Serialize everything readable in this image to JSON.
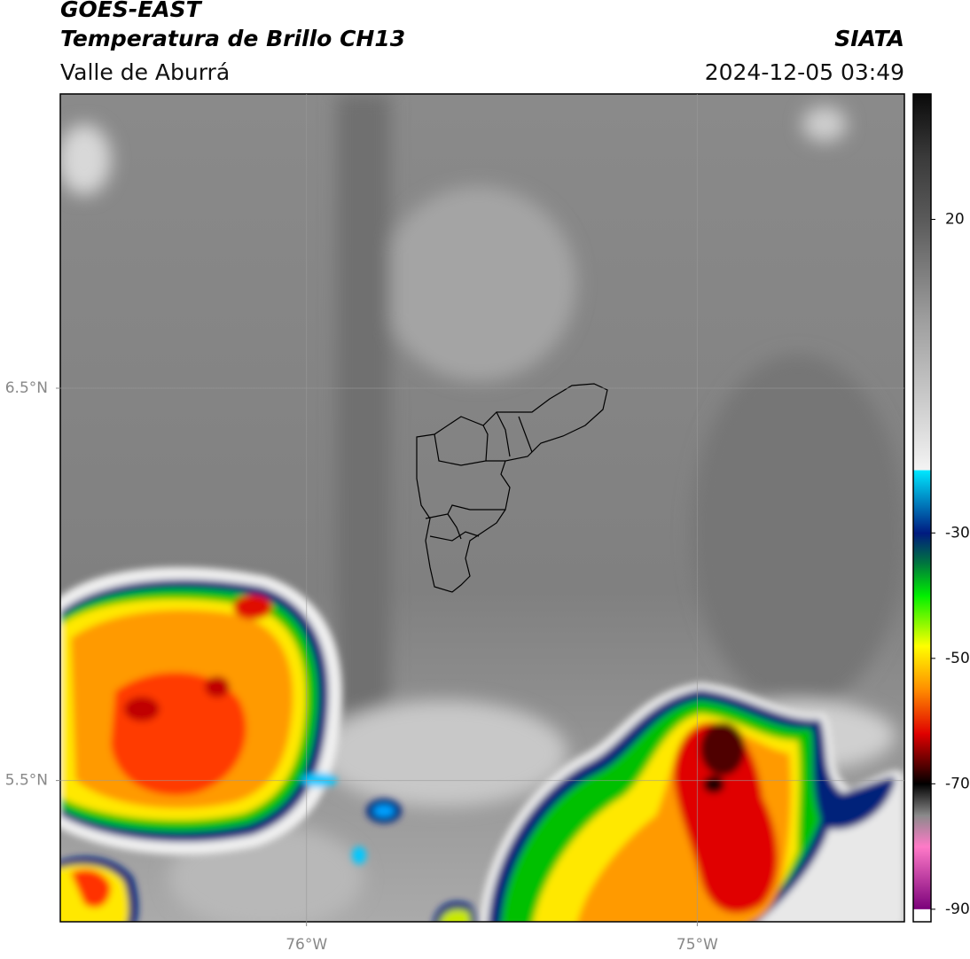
{
  "header": {
    "title": "GOES-EAST",
    "subtitle": "Temperatura de Brillo CH13",
    "region": "Valle de Aburrá",
    "source": "SIATA",
    "datetime": "2024-12-05 03:49"
  },
  "map": {
    "xlim": [
      -76.63,
      -74.47
    ],
    "ylim": [
      5.14,
      7.25
    ],
    "xticks": [
      {
        "value": -76,
        "label": "76°W"
      },
      {
        "value": -75,
        "label": "75°W"
      }
    ],
    "yticks": [
      {
        "value": 6.5,
        "label": "6.5°N"
      },
      {
        "value": 5.5,
        "label": "5.5°N"
      }
    ],
    "grid": true
  },
  "colorbar": {
    "lim": [
      -92,
      40
    ],
    "ticks": [
      20,
      -30,
      -50,
      -70,
      -90
    ],
    "colormap": [
      [
        40,
        "#0a0a0a"
      ],
      [
        30,
        "#3a3a3a"
      ],
      [
        20,
        "#5a5a5a"
      ],
      [
        5,
        "#9a9a9a"
      ],
      [
        -10,
        "#cfcfcf"
      ],
      [
        -20,
        "#f4f4f4"
      ],
      [
        -20,
        "#00e8ff"
      ],
      [
        -30,
        "#001a80"
      ],
      [
        -35,
        "#007a3c"
      ],
      [
        -40,
        "#00f000"
      ],
      [
        -48,
        "#ffff00"
      ],
      [
        -55,
        "#ff8c00"
      ],
      [
        -62,
        "#e00000"
      ],
      [
        -68,
        "#3a0000"
      ],
      [
        -70,
        "#000000"
      ],
      [
        -75,
        "#8a8a8a"
      ],
      [
        -80,
        "#ff7ac8"
      ],
      [
        -90,
        "#7a007a"
      ],
      [
        -90,
        "#ffffff"
      ],
      [
        -92,
        "#ffffff"
      ]
    ]
  }
}
